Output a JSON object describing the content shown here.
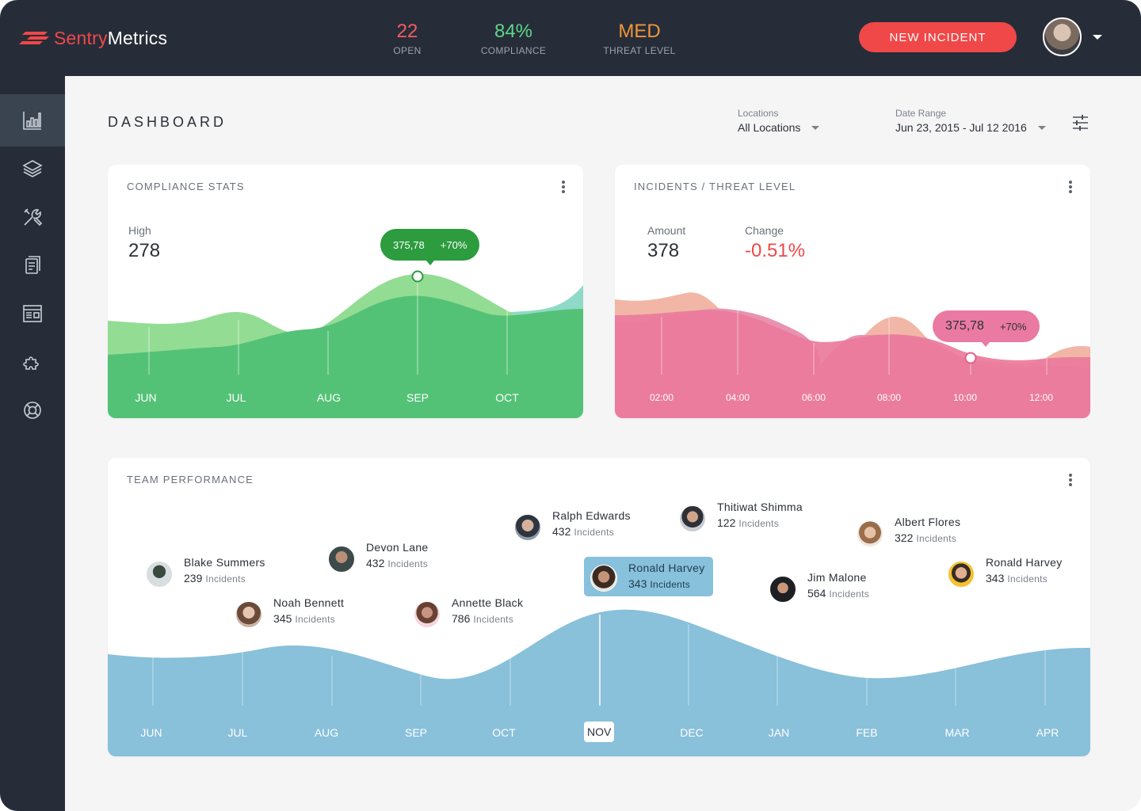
{
  "app": {
    "brand_part1": "Sentry",
    "brand_part2": "Metrics",
    "accent_color": "#f04848"
  },
  "kpis": {
    "open": {
      "value": "22",
      "label": "OPEN",
      "color": "#f25c63"
    },
    "compliance": {
      "value": "84%",
      "label": "COMPLIANCE",
      "color": "#5fd68a"
    },
    "threat": {
      "value": "MED",
      "label": "THREAT LEVEL",
      "color": "#f2953a"
    }
  },
  "header": {
    "new_incident_label": "NEW INCIDENT",
    "page_title": "DASHBOARD",
    "locations_label": "Locations",
    "locations_value": "All Locations",
    "date_range_label": "Date Range",
    "date_range_value": "Jun 23, 2015 - Jul 12 2016"
  },
  "sidebar": {
    "items": [
      {
        "icon": "bar-chart-icon",
        "active": true
      },
      {
        "icon": "layers-icon",
        "active": false
      },
      {
        "icon": "tools-icon",
        "active": false
      },
      {
        "icon": "clipboard-icon",
        "active": false
      },
      {
        "icon": "browser-window-icon",
        "active": false
      },
      {
        "icon": "puzzle-icon",
        "active": false
      },
      {
        "icon": "lifebuoy-icon",
        "active": false
      }
    ]
  },
  "compliance": {
    "title": "COMPLIANCE STATS",
    "metric_label": "High",
    "metric_value": "278",
    "tooltip_value": "375,78",
    "tooltip_change": "+70%",
    "months": [
      "JUN",
      "JUL",
      "AUG",
      "SEP",
      "OCT"
    ]
  },
  "incidents": {
    "title": "INCIDENTS / THREAT LEVEL",
    "amount_label": "Amount",
    "amount_value": "378",
    "change_label": "Change",
    "change_value": "-0.51%",
    "tooltip_value": "375,78",
    "tooltip_change": "+70%",
    "times": [
      "02:00",
      "04:00",
      "06:00",
      "08:00",
      "10:00",
      "12:00"
    ]
  },
  "team": {
    "title": "TEAM PERFORMANCE",
    "incidents_caption": "Incidents",
    "members": [
      {
        "name": "Blake Summers",
        "count": "239"
      },
      {
        "name": "Noah Bennett",
        "count": "345"
      },
      {
        "name": "Devon Lane",
        "count": "432"
      },
      {
        "name": "Annette Black",
        "count": "786"
      },
      {
        "name": "Ralph Edwards",
        "count": "432"
      },
      {
        "name": "Ronald Harvey",
        "count": "343"
      },
      {
        "name": "Thitiwat Shimma",
        "count": "122"
      },
      {
        "name": "Jim Malone",
        "count": "564"
      },
      {
        "name": "Albert Flores",
        "count": "322"
      },
      {
        "name": "Ronald Harvey",
        "count": "343"
      }
    ],
    "months": [
      "JUN",
      "JUL",
      "AUG",
      "SEP",
      "OCT",
      "NOV",
      "DEC",
      "JAN",
      "FEB",
      "MAR",
      "APR"
    ],
    "selected_month": "NOV"
  }
}
